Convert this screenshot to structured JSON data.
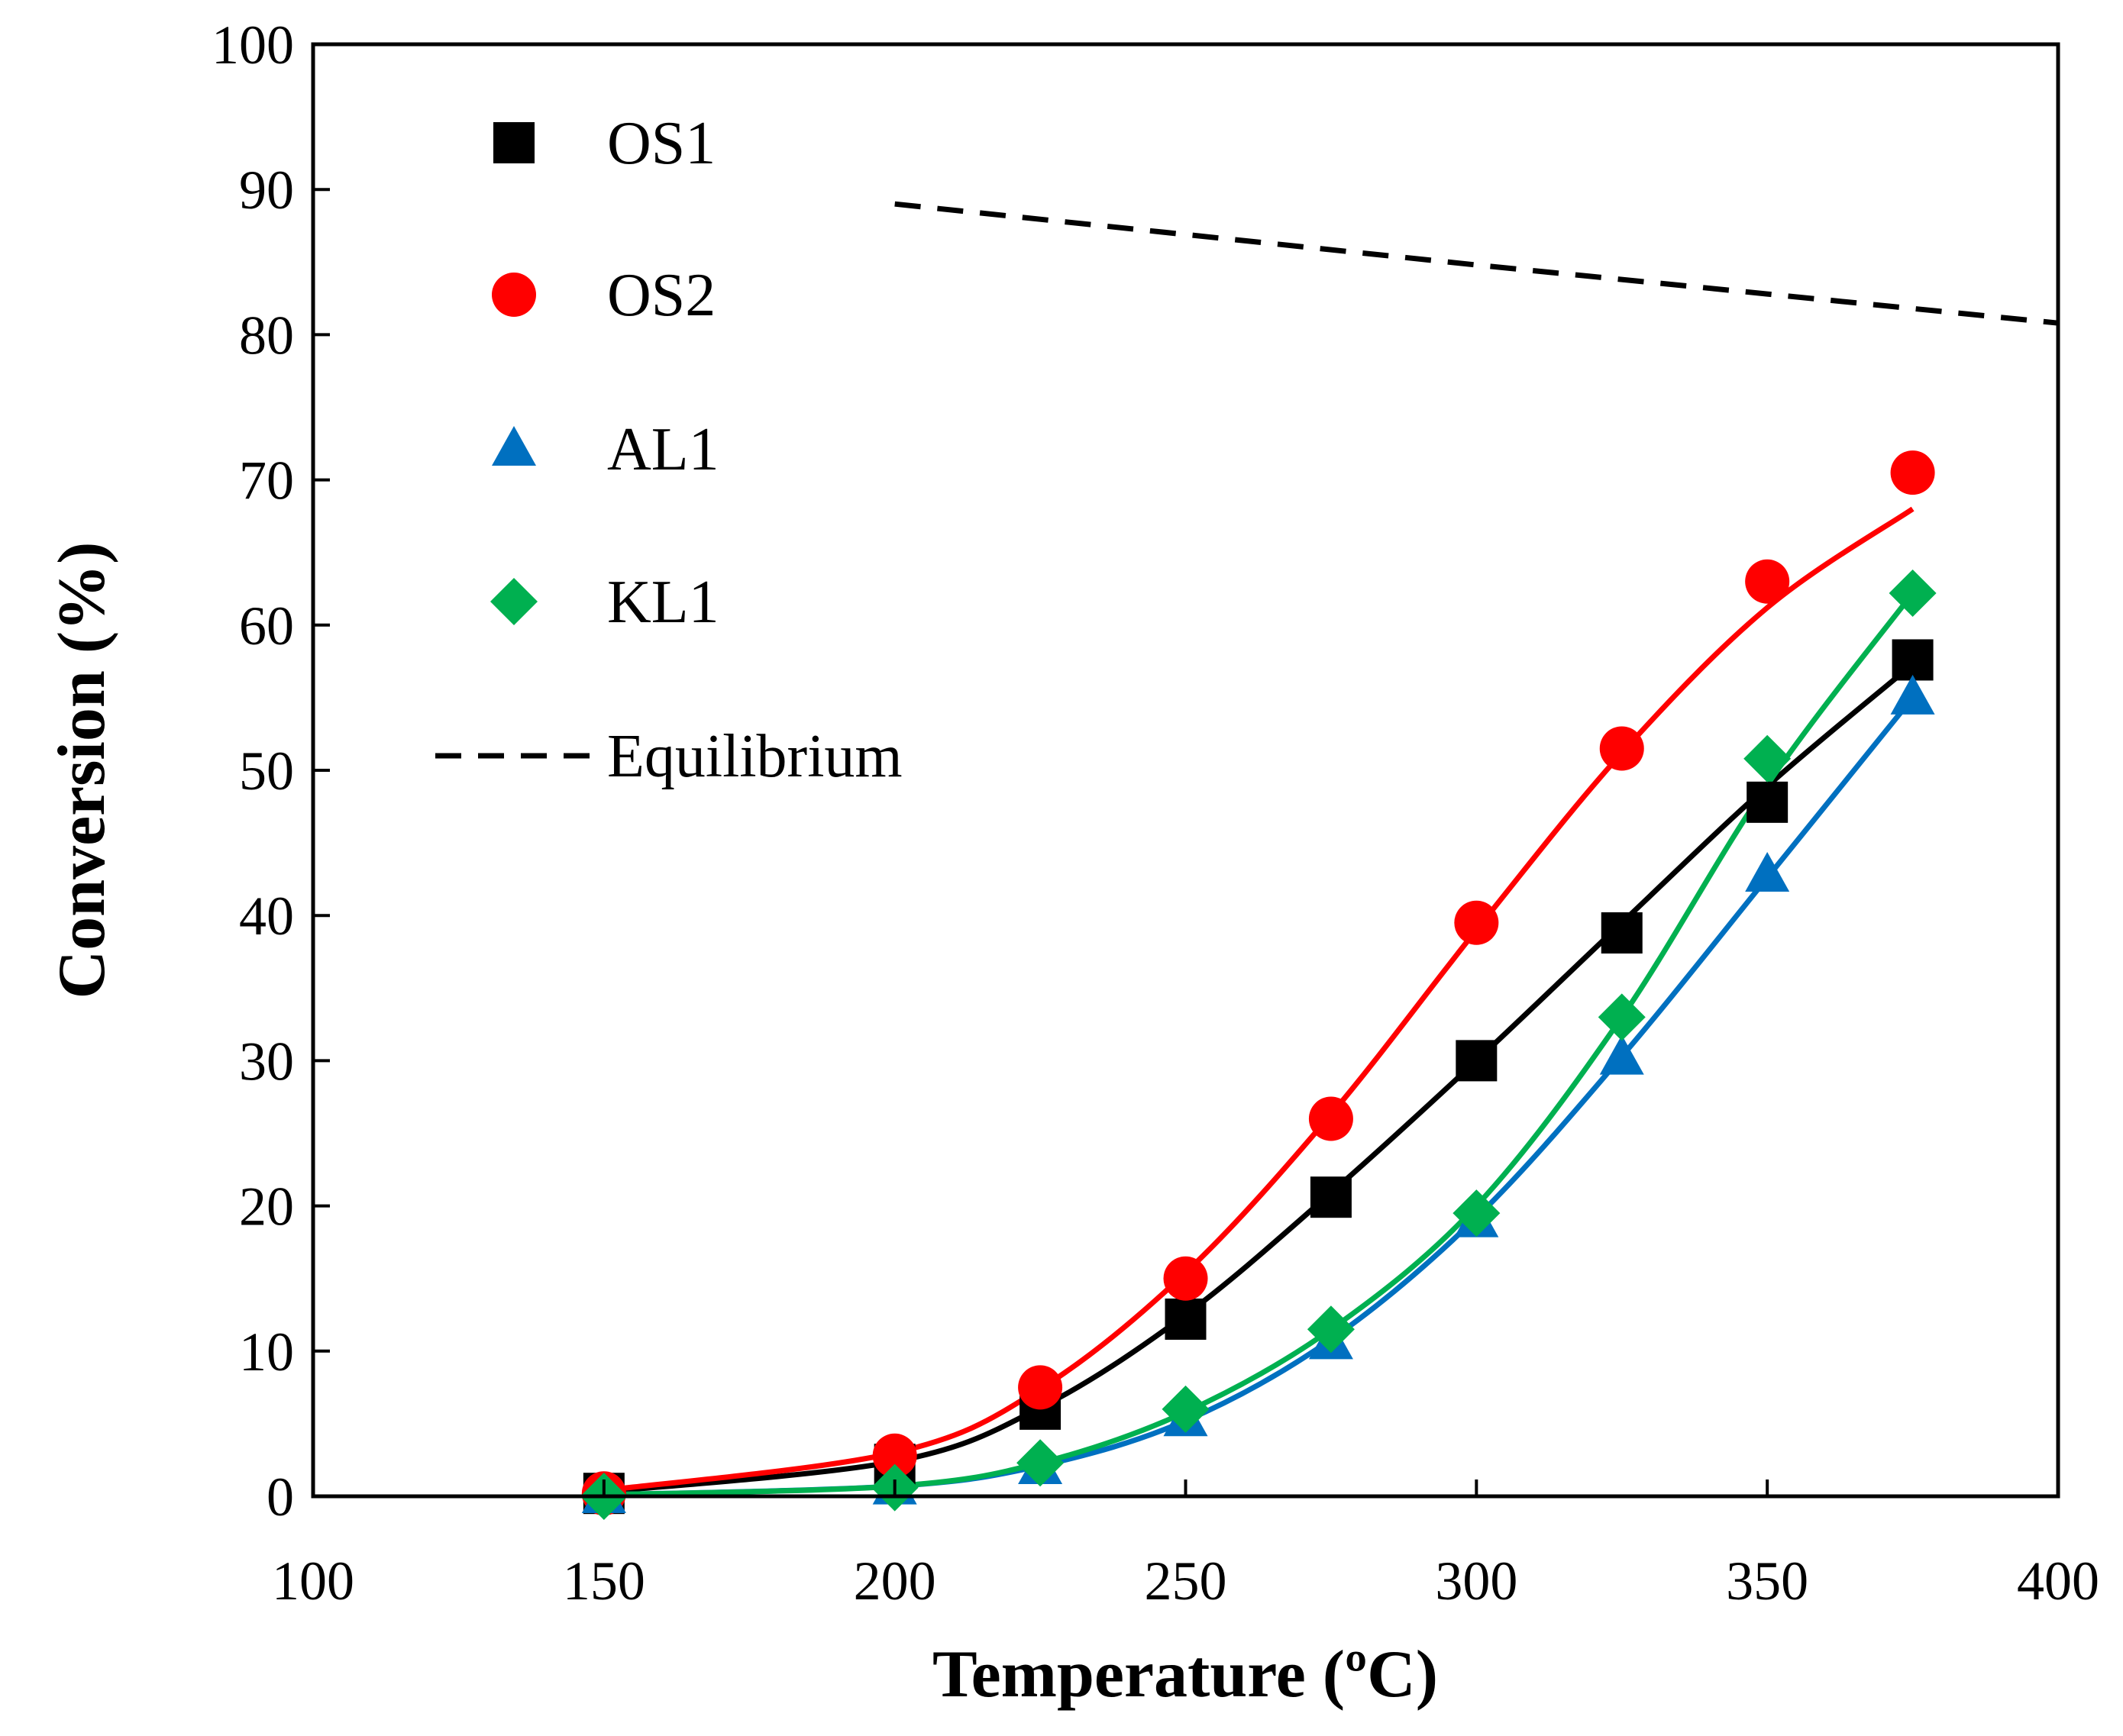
{
  "chart_data": {
    "type": "line",
    "title": "",
    "xlabel": "Temperature  (ºC)",
    "ylabel": "Conversion  (%)",
    "xlim": [
      100,
      400
    ],
    "ylim": [
      0,
      100
    ],
    "xticks": [
      100,
      150,
      200,
      250,
      300,
      350,
      400
    ],
    "yticks": [
      0,
      10,
      20,
      30,
      40,
      50,
      60,
      70,
      80,
      90,
      100
    ],
    "x": [
      150,
      200,
      225,
      250,
      275,
      300,
      325,
      350,
      375
    ],
    "legend_position": "top-left",
    "grid": false,
    "series": [
      {
        "name": "OS1",
        "marker": "square",
        "color": "#000000",
        "values": [
          0.2,
          2.2,
          6.0,
          12.2,
          20.6,
          30.0,
          38.8,
          47.8,
          57.6
        ],
        "fit_values": [
          0.3,
          2.4,
          6.1,
          12.5,
          20.9,
          30.0,
          39.5,
          48.9,
          57.3
        ]
      },
      {
        "name": "OS2",
        "marker": "circle",
        "color": "#ff0000",
        "values": [
          0.2,
          2.8,
          7.5,
          15.0,
          26.0,
          39.5,
          51.5,
          63.0,
          70.5
        ],
        "fit_values": [
          0.4,
          3.0,
          7.4,
          15.4,
          26.3,
          39.0,
          51.2,
          61.2,
          68.0
        ]
      },
      {
        "name": "AL1",
        "marker": "triangle",
        "color": "#0070c0",
        "values": [
          0.0,
          0.6,
          2.0,
          5.3,
          10.6,
          19.0,
          30.2,
          42.8,
          55.0
        ],
        "fit_values": [
          0.1,
          0.7,
          2.1,
          5.2,
          10.8,
          19.2,
          30.3,
          42.6,
          55.0
        ]
      },
      {
        "name": "KL1",
        "marker": "diamond",
        "color": "#00b050",
        "values": [
          0.0,
          0.6,
          2.3,
          6.0,
          11.5,
          19.5,
          33.0,
          50.8,
          62.2
        ],
        "fit_values": [
          0.1,
          0.7,
          2.3,
          5.8,
          11.5,
          20.0,
          33.0,
          49.0,
          62.2
        ]
      },
      {
        "name": "Equilibrium",
        "style": "dashed",
        "color": "#000000",
        "x": [
          200,
          250,
          300,
          350,
          400
        ],
        "values": [
          89.0,
          86.9,
          84.8,
          82.8,
          80.8
        ]
      }
    ]
  }
}
